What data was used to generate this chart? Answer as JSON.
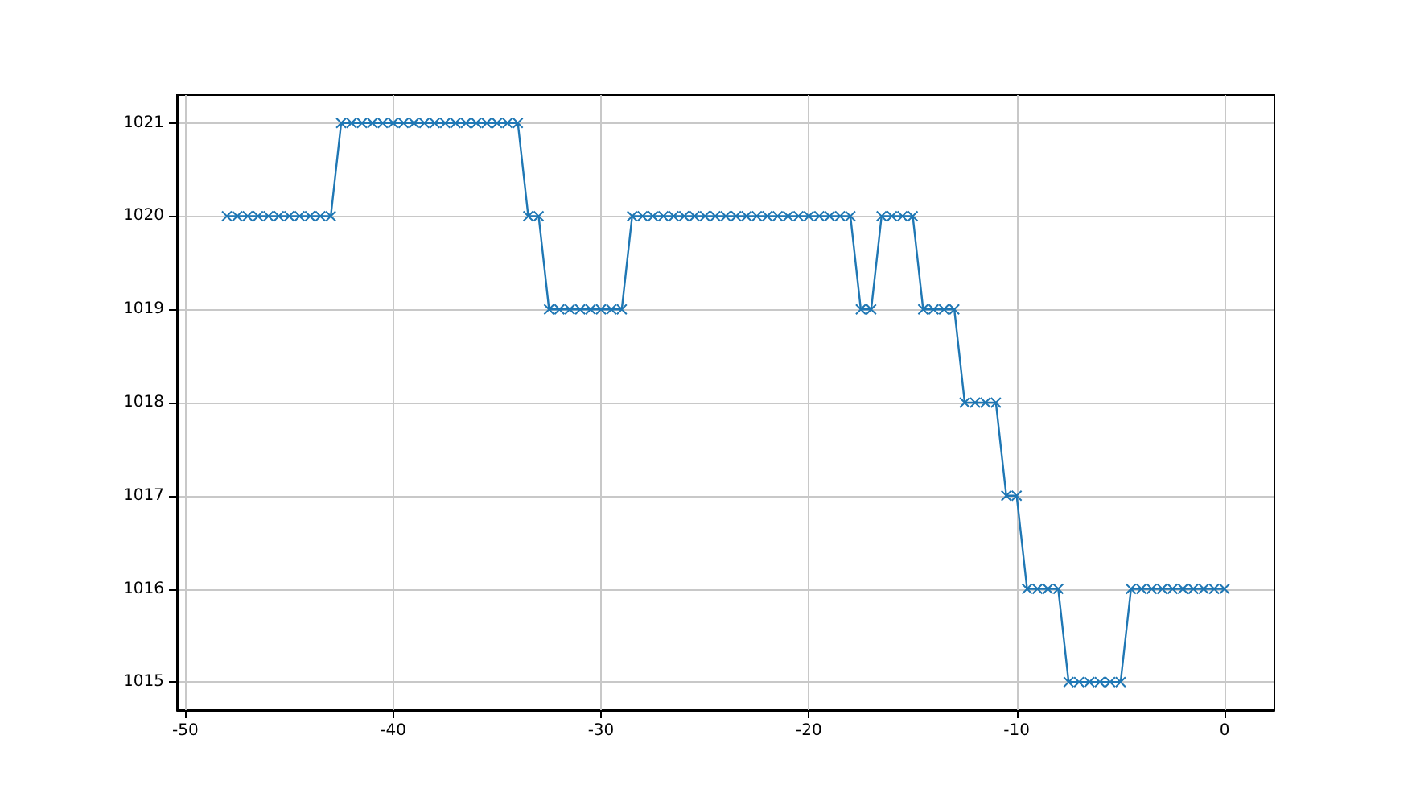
{
  "chart_data": {
    "type": "line",
    "x": [
      -48,
      -47.5,
      -47,
      -46.5,
      -46,
      -45.5,
      -45,
      -44.5,
      -44,
      -43.5,
      -43,
      -42.5,
      -42,
      -41.5,
      -41,
      -40.5,
      -40,
      -39.5,
      -39,
      -38.5,
      -38,
      -37.5,
      -37,
      -36.5,
      -36,
      -35.5,
      -35,
      -34.5,
      -34,
      -33.5,
      -33,
      -32.5,
      -32,
      -31.5,
      -31,
      -30.5,
      -30,
      -29.5,
      -29,
      -28.5,
      -28,
      -27.5,
      -27,
      -26.5,
      -26,
      -25.5,
      -25,
      -24.5,
      -24,
      -23.5,
      -23,
      -22.5,
      -22,
      -21.5,
      -21,
      -20.5,
      -20,
      -19.5,
      -19,
      -18.5,
      -18,
      -17.5,
      -17,
      -16.5,
      -16,
      -15.5,
      -15,
      -14.5,
      -14,
      -13.5,
      -13,
      -12.5,
      -12,
      -11.5,
      -11,
      -10.5,
      -10,
      -9.5,
      -9,
      -8.5,
      -8,
      -7.5,
      -7,
      -6.5,
      -6,
      -5.5,
      -5,
      -4.5,
      -4,
      -3.5,
      -3,
      -2.5,
      -2,
      -1.5,
      -1,
      -0.5,
      0
    ],
    "series": [
      {
        "color": "#1f77b4",
        "values": [
          1020,
          1020,
          1020,
          1020,
          1020,
          1020,
          1020,
          1020,
          1020,
          1020,
          1020,
          1021,
          1021,
          1021,
          1021,
          1021,
          1021,
          1021,
          1021,
          1021,
          1021,
          1021,
          1021,
          1021,
          1021,
          1021,
          1021,
          1021,
          1021,
          1020,
          1020,
          1019,
          1019,
          1019,
          1019,
          1019,
          1019,
          1019,
          1019,
          1020,
          1020,
          1020,
          1020,
          1020,
          1020,
          1020,
          1020,
          1020,
          1020,
          1020,
          1020,
          1020,
          1020,
          1020,
          1020,
          1020,
          1020,
          1020,
          1020,
          1020,
          1020,
          1019,
          1019,
          1020,
          1020,
          1020,
          1020,
          1019,
          1019,
          1019,
          1019,
          1018,
          1018,
          1018,
          1018,
          1017,
          1017,
          1016,
          1016,
          1016,
          1016,
          1015,
          1015,
          1015,
          1015,
          1015,
          1015,
          1016,
          1016,
          1016,
          1016,
          1016,
          1016,
          1016,
          1016,
          1016,
          1016
        ]
      }
    ],
    "xlim": [
      -50.4,
      2.4
    ],
    "xticks": [
      -50,
      -40,
      -30,
      -20,
      -10,
      0
    ],
    "ylim": [
      1014.7,
      1021.3
    ],
    "yticks": [
      1015,
      1016,
      1017,
      1018,
      1019,
      1020,
      1021
    ],
    "grid": true,
    "marker": "cross",
    "line_style": "solid"
  }
}
